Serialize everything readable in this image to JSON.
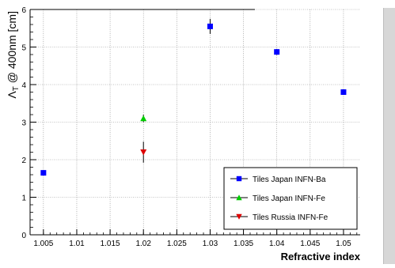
{
  "chart_data": {
    "type": "scatter",
    "xlabel": "Refractive index",
    "ylabel_main": "Λ",
    "ylabel_sub": "T",
    "ylabel_rest": " @ 400nm [cm]",
    "xlim": [
      1.003,
      1.0525
    ],
    "ylim": [
      0,
      6
    ],
    "grid": true,
    "legend_position": "bottom-right",
    "x_ticks": [
      {
        "value": 1.005,
        "label": "1.005"
      },
      {
        "value": 1.01,
        "label": "1.01"
      },
      {
        "value": 1.015,
        "label": "1.015"
      },
      {
        "value": 1.02,
        "label": "1.02"
      },
      {
        "value": 1.025,
        "label": "1.025"
      },
      {
        "value": 1.03,
        "label": "1.03"
      },
      {
        "value": 1.035,
        "label": "1.035"
      },
      {
        "value": 1.04,
        "label": "1.04"
      },
      {
        "value": 1.045,
        "label": "1.045"
      },
      {
        "value": 1.05,
        "label": "1.05"
      }
    ],
    "y_ticks": [
      {
        "value": 0,
        "label": "0"
      },
      {
        "value": 1,
        "label": "1"
      },
      {
        "value": 2,
        "label": "2"
      },
      {
        "value": 3,
        "label": "3"
      },
      {
        "value": 4,
        "label": "4"
      },
      {
        "value": 5,
        "label": "5"
      },
      {
        "value": 6,
        "label": "6"
      }
    ],
    "series": [
      {
        "name": "Tiles Japan INFN-Ba",
        "color": "#0000ff",
        "marker": "square",
        "points": [
          {
            "x": 1.005,
            "y": 1.65,
            "err": 0.05
          },
          {
            "x": 1.03,
            "y": 5.55,
            "err": 0.2
          },
          {
            "x": 1.04,
            "y": 4.87,
            "err": 0.08
          },
          {
            "x": 1.05,
            "y": 3.8,
            "err": 0.05
          }
        ]
      },
      {
        "name": "Tiles Japan INFN-Fe",
        "color": "#00cc00",
        "marker": "triangle-up",
        "points": [
          {
            "x": 1.02,
            "y": 3.1,
            "err": 0.1
          }
        ]
      },
      {
        "name": "Tiles Russia INFN-Fe",
        "color": "#dd0000",
        "marker": "triangle-down",
        "points": [
          {
            "x": 1.02,
            "y": 2.2,
            "err": 0.28
          }
        ]
      }
    ]
  }
}
